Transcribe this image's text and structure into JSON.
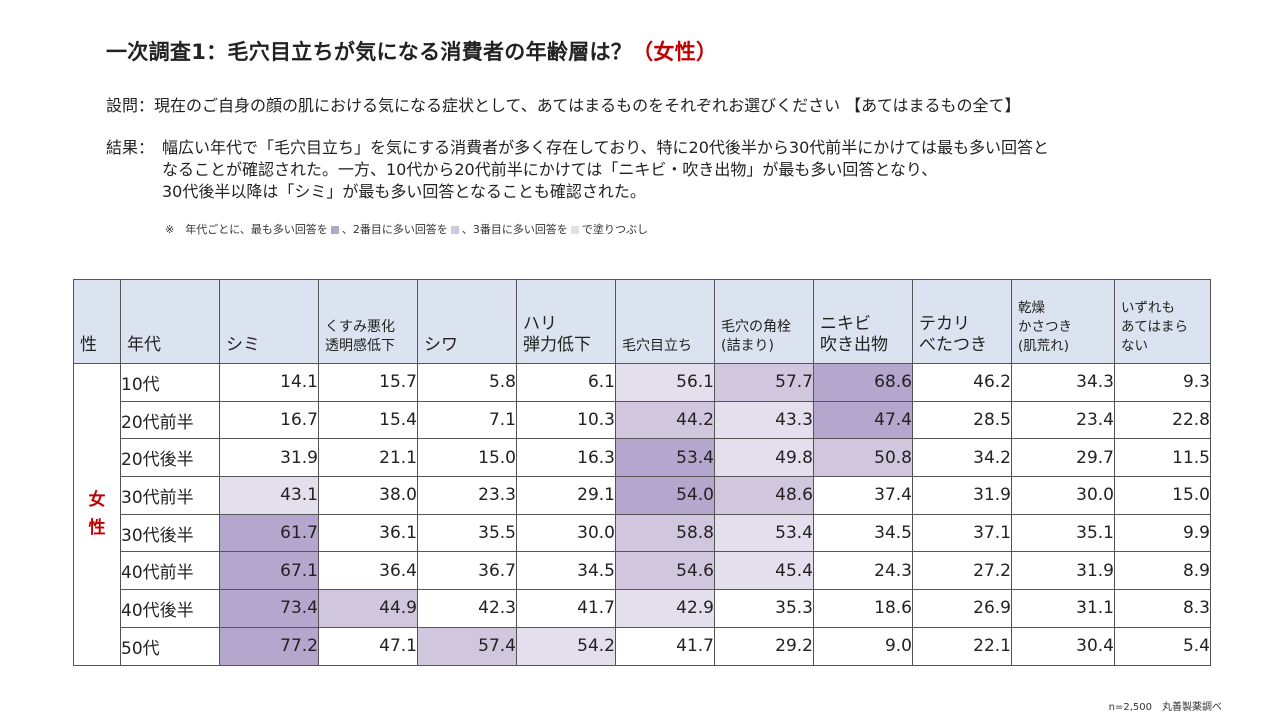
{
  "header": {
    "title_main": "一次調査1：毛穴目立ちが気になる消費者の年齢層は？",
    "title_accent": "（女性）"
  },
  "question": {
    "label": "設問：",
    "text": "現在のご自身の顔の肌における気になる症状として、あてはまるものをそれぞれお選びください 【あてはまるもの全て】"
  },
  "result": {
    "label": "結果：",
    "lines": [
      "幅広い年代で「毛穴目立ち」を気にする消費者が多く存在しており、特に20代後半から30代前半にかけては最も多い回答と",
      "なることが確認された。一方、10代から20代前半にかけては「ニキビ・吹き出物」が最も多い回答となり、",
      "30代後半以降は「シミ」が最も多い回答となることも確認された。"
    ]
  },
  "note": {
    "prefix": "※　年代ごとに、最も多い回答を",
    "mid1": "、2番目に多い回答を",
    "mid2": "、3番目に多い回答を",
    "suffix": "で塗りつぶし"
  },
  "footer": {
    "sample": "n=2,500",
    "source": "丸善製薬調べ"
  },
  "colors": {
    "rank1": "#b4a6cc",
    "rank2": "#d0c7df",
    "rank3": "#e3dfed",
    "header_bg": "#dae3ef",
    "accent": "#c00000"
  },
  "chart_data": {
    "type": "table",
    "headers": {
      "sex": "性",
      "age": "年代",
      "columns": [
        [
          "シミ"
        ],
        [
          "くすみ悪化",
          "透明感低下"
        ],
        [
          "シワ"
        ],
        [
          "ハリ",
          "弾力低下"
        ],
        [
          "毛穴目立ち"
        ],
        [
          "毛穴の角栓",
          "(詰まり)"
        ],
        [
          "ニキビ",
          "吹き出物"
        ],
        [
          "テカリ",
          "べたつき"
        ],
        [
          "乾燥",
          "かさつき",
          "(肌荒れ)"
        ],
        [
          "いずれも",
          "あてはまら",
          "ない"
        ]
      ]
    },
    "sex_label": [
      "女",
      "性"
    ],
    "rows": [
      {
        "age": "10代",
        "values": [
          "14.1",
          "15.7",
          "5.8",
          "6.1",
          "56.1",
          "57.7",
          "68.6",
          "46.2",
          "34.3",
          "9.3"
        ],
        "ranks": [
          0,
          0,
          0,
          0,
          3,
          2,
          1,
          0,
          0,
          0
        ]
      },
      {
        "age": "20代前半",
        "values": [
          "16.7",
          "15.4",
          "7.1",
          "10.3",
          "44.2",
          "43.3",
          "47.4",
          "28.5",
          "23.4",
          "22.8"
        ],
        "ranks": [
          0,
          0,
          0,
          0,
          2,
          3,
          1,
          0,
          0,
          0
        ]
      },
      {
        "age": "20代後半",
        "values": [
          "31.9",
          "21.1",
          "15.0",
          "16.3",
          "53.4",
          "49.8",
          "50.8",
          "34.2",
          "29.7",
          "11.5"
        ],
        "ranks": [
          0,
          0,
          0,
          0,
          1,
          3,
          2,
          0,
          0,
          0
        ]
      },
      {
        "age": "30代前半",
        "values": [
          "43.1",
          "38.0",
          "23.3",
          "29.1",
          "54.0",
          "48.6",
          "37.4",
          "31.9",
          "30.0",
          "15.0"
        ],
        "ranks": [
          3,
          0,
          0,
          0,
          1,
          2,
          0,
          0,
          0,
          0
        ]
      },
      {
        "age": "30代後半",
        "values": [
          "61.7",
          "36.1",
          "35.5",
          "30.0",
          "58.8",
          "53.4",
          "34.5",
          "37.1",
          "35.1",
          "9.9"
        ],
        "ranks": [
          1,
          0,
          0,
          0,
          2,
          3,
          0,
          0,
          0,
          0
        ]
      },
      {
        "age": "40代前半",
        "values": [
          "67.1",
          "36.4",
          "36.7",
          "34.5",
          "54.6",
          "45.4",
          "24.3",
          "27.2",
          "31.9",
          "8.9"
        ],
        "ranks": [
          1,
          0,
          0,
          0,
          2,
          3,
          0,
          0,
          0,
          0
        ]
      },
      {
        "age": "40代後半",
        "values": [
          "73.4",
          "44.9",
          "42.3",
          "41.7",
          "42.9",
          "35.3",
          "18.6",
          "26.9",
          "31.1",
          "8.3"
        ],
        "ranks": [
          1,
          2,
          0,
          0,
          3,
          0,
          0,
          0,
          0,
          0
        ]
      },
      {
        "age": "50代",
        "values": [
          "77.2",
          "47.1",
          "57.4",
          "54.2",
          "41.7",
          "29.2",
          "9.0",
          "22.1",
          "30.4",
          "5.4"
        ],
        "ranks": [
          1,
          0,
          2,
          3,
          0,
          0,
          0,
          0,
          0,
          0
        ]
      }
    ]
  }
}
